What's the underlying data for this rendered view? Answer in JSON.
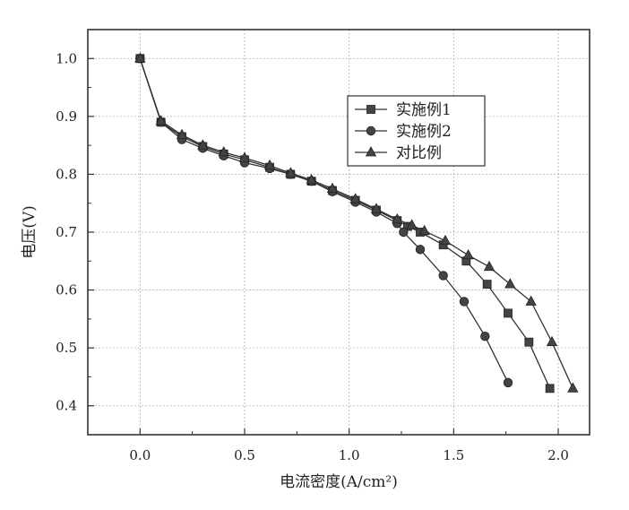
{
  "chart_data": {
    "type": "line",
    "title": "",
    "xlabel": "电流密度(A/cm²)",
    "ylabel": "电压(V)",
    "xlim": [
      -0.25,
      2.15
    ],
    "ylim": [
      0.35,
      1.05
    ],
    "xticks": [
      "0.0",
      "0.5",
      "1.0",
      "1.5",
      "2.0"
    ],
    "yticks": [
      "0.4",
      "0.5",
      "0.6",
      "0.7",
      "0.8",
      "0.9",
      "1.0"
    ],
    "grid": true,
    "legend_position": "top-right",
    "series": [
      {
        "name": "实施例1",
        "marker": "square",
        "points": [
          [
            0.0,
            1.0
          ],
          [
            0.1,
            0.89
          ],
          [
            0.2,
            0.865
          ],
          [
            0.3,
            0.848
          ],
          [
            0.4,
            0.835
          ],
          [
            0.5,
            0.825
          ],
          [
            0.62,
            0.812
          ],
          [
            0.72,
            0.8
          ],
          [
            0.82,
            0.788
          ],
          [
            0.92,
            0.772
          ],
          [
            1.03,
            0.755
          ],
          [
            1.13,
            0.738
          ],
          [
            1.23,
            0.72
          ],
          [
            1.28,
            0.71
          ],
          [
            1.34,
            0.7
          ],
          [
            1.45,
            0.678
          ],
          [
            1.56,
            0.65
          ],
          [
            1.66,
            0.61
          ],
          [
            1.76,
            0.56
          ],
          [
            1.86,
            0.51
          ],
          [
            1.96,
            0.43
          ]
        ]
      },
      {
        "name": "实施例2",
        "marker": "circle",
        "points": [
          [
            0.0,
            1.0
          ],
          [
            0.1,
            0.89
          ],
          [
            0.2,
            0.86
          ],
          [
            0.3,
            0.845
          ],
          [
            0.4,
            0.832
          ],
          [
            0.5,
            0.82
          ],
          [
            0.62,
            0.81
          ],
          [
            0.72,
            0.8
          ],
          [
            0.82,
            0.788
          ],
          [
            0.92,
            0.77
          ],
          [
            1.03,
            0.752
          ],
          [
            1.13,
            0.735
          ],
          [
            1.23,
            0.715
          ],
          [
            1.26,
            0.7
          ],
          [
            1.34,
            0.67
          ],
          [
            1.45,
            0.625
          ],
          [
            1.55,
            0.58
          ],
          [
            1.65,
            0.52
          ],
          [
            1.76,
            0.44
          ]
        ]
      },
      {
        "name": "对比例",
        "marker": "triangle",
        "points": [
          [
            0.0,
            1.0
          ],
          [
            0.1,
            0.892
          ],
          [
            0.2,
            0.868
          ],
          [
            0.3,
            0.85
          ],
          [
            0.4,
            0.838
          ],
          [
            0.5,
            0.828
          ],
          [
            0.62,
            0.815
          ],
          [
            0.72,
            0.802
          ],
          [
            0.82,
            0.79
          ],
          [
            0.92,
            0.775
          ],
          [
            1.03,
            0.757
          ],
          [
            1.13,
            0.74
          ],
          [
            1.23,
            0.722
          ],
          [
            1.3,
            0.712
          ],
          [
            1.36,
            0.702
          ],
          [
            1.46,
            0.685
          ],
          [
            1.57,
            0.66
          ],
          [
            1.67,
            0.64
          ],
          [
            1.77,
            0.61
          ],
          [
            1.87,
            0.58
          ],
          [
            1.97,
            0.51
          ],
          [
            2.07,
            0.43
          ]
        ]
      }
    ]
  }
}
